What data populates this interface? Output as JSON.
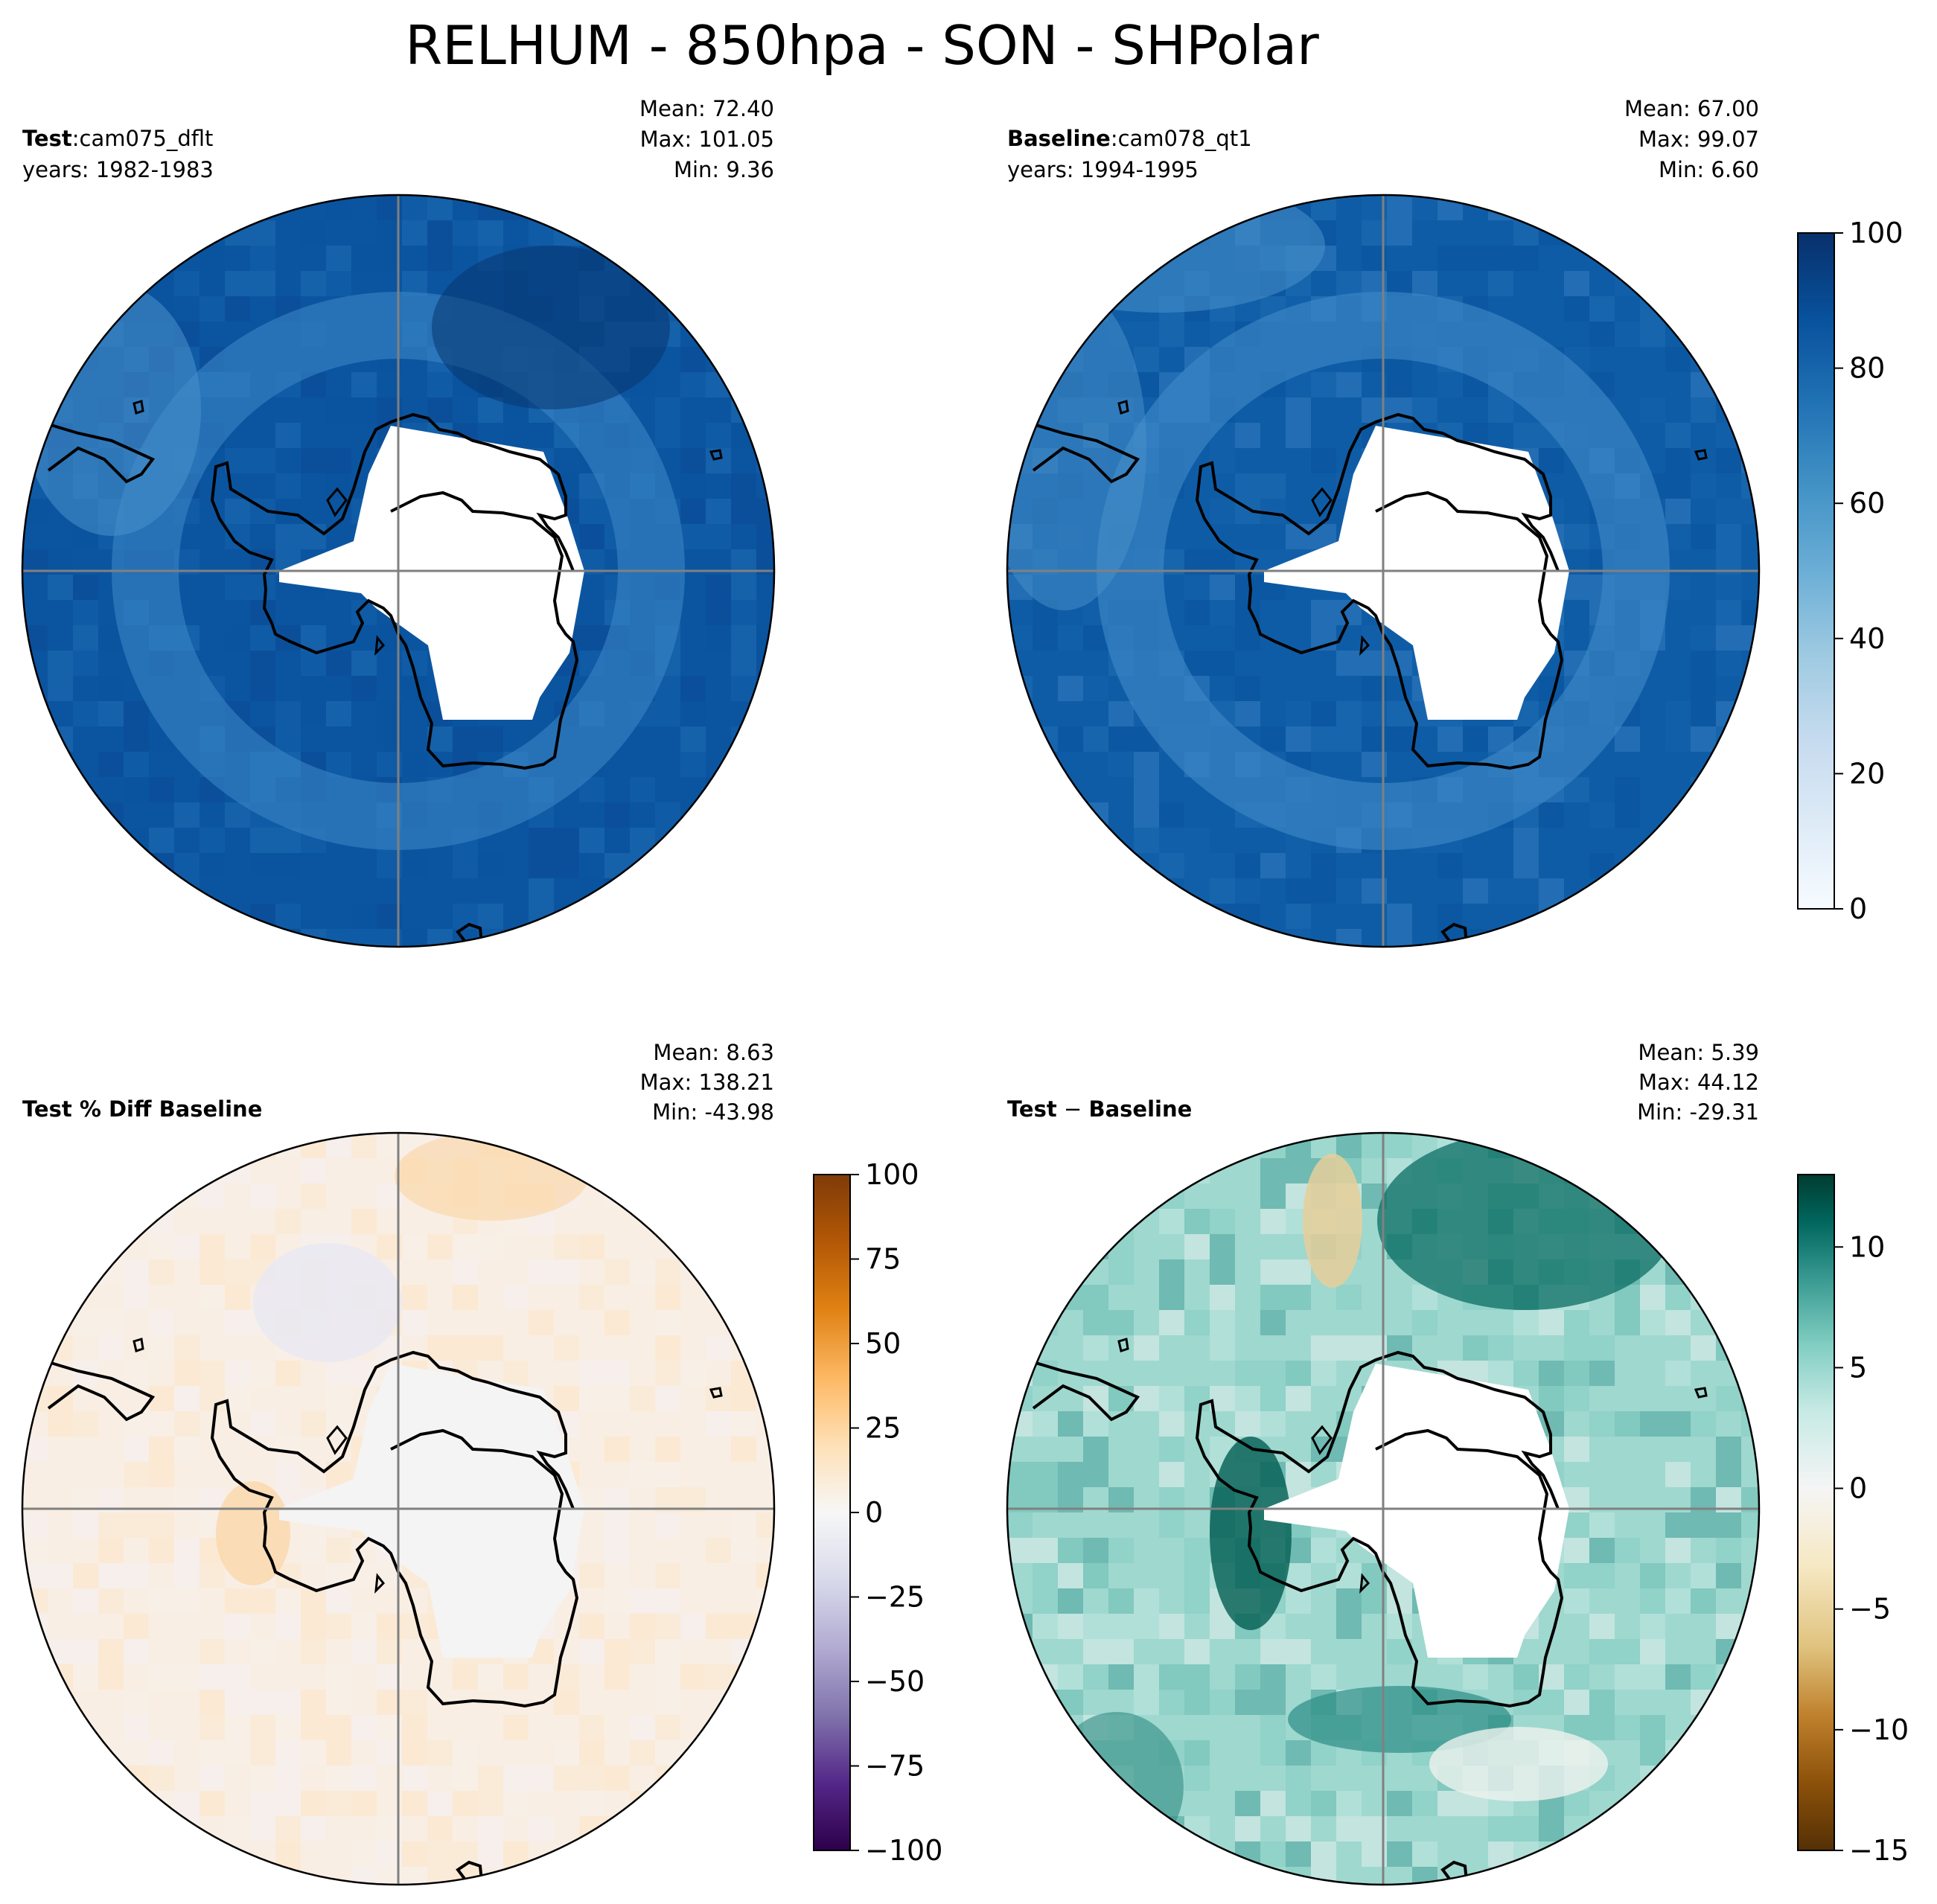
{
  "figure": {
    "title": "RELHUM - 850hpa - SON - SHPolar"
  },
  "panels": [
    {
      "id": "test",
      "label_bold": "Test",
      "label_sep": ":",
      "label_rest": "cam075_dflt",
      "years": "years: 1982-1983",
      "stats": [
        "Mean: 72.40",
        "Max: 101.05",
        "Min:  9.36"
      ],
      "colormap": "Blues"
    },
    {
      "id": "baseline",
      "label_bold": "Baseline",
      "label_sep": ":",
      "label_rest": "cam078_qt1",
      "years": "years: 1994-1995",
      "stats": [
        "Mean: 67.00",
        "Max: 99.07",
        "Min:  6.60"
      ],
      "colormap": "Blues"
    },
    {
      "id": "pctdiff",
      "label_bold": "Test % Diff Baseline",
      "label_sep": "",
      "label_rest": "",
      "years": "",
      "stats": [
        "Mean:  8.63",
        "Max: 138.21",
        "Min: -43.98"
      ],
      "colormap": "PuOr_r"
    },
    {
      "id": "diff",
      "label_bold": "Test",
      "label_sep": " − ",
      "label_rest": "Baseline",
      "label_rest_bold": true,
      "years": "",
      "stats": [
        "Mean:  5.39",
        "Max: 44.12",
        "Min: -29.31"
      ],
      "colormap": "BrBG"
    }
  ],
  "colorbars": [
    {
      "id": "cbar-blues",
      "range": [
        0,
        100
      ],
      "ticks": [
        "100",
        "80",
        "60",
        "40",
        "20",
        "0"
      ],
      "tick_values": [
        100,
        80,
        60,
        40,
        20,
        0
      ],
      "colors": [
        "#f7fbff",
        "#deebf7",
        "#c6dbef",
        "#9ecae1",
        "#6baed6",
        "#4292c6",
        "#2171b5",
        "#08519c",
        "#08306b"
      ]
    },
    {
      "id": "cbar-puor",
      "range": [
        -100,
        100
      ],
      "ticks": [
        "100",
        "75",
        "50",
        "25",
        "0",
        "−25",
        "−50",
        "−75",
        "−100"
      ],
      "tick_values": [
        100,
        75,
        50,
        25,
        0,
        -25,
        -50,
        -75,
        -100
      ],
      "colors": [
        "#2d004b",
        "#542788",
        "#8073ac",
        "#b2abd2",
        "#d8daeb",
        "#f7f7f7",
        "#fee0b6",
        "#fdb863",
        "#e08214",
        "#b35806",
        "#7f3b08"
      ]
    },
    {
      "id": "cbar-brbg",
      "range": [
        -15,
        13
      ],
      "ticks": [
        "10",
        "5",
        "0",
        "−5",
        "−10",
        "−15"
      ],
      "tick_values": [
        10,
        5,
        0,
        -5,
        -10,
        -15
      ],
      "colors": [
        "#543005",
        "#8c510a",
        "#bf812d",
        "#dfc27d",
        "#f6e8c3",
        "#f5f5f5",
        "#c7eae5",
        "#80cdc1",
        "#35978f",
        "#01665e",
        "#003c30"
      ]
    }
  ]
}
